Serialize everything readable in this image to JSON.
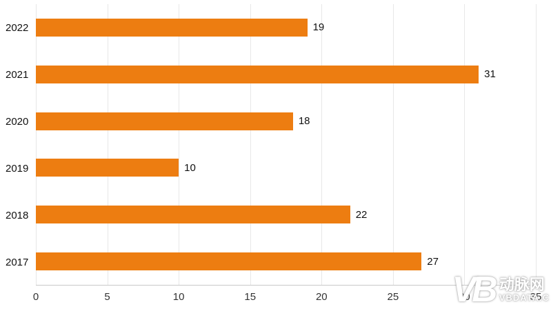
{
  "chart_data": {
    "type": "bar",
    "orientation": "horizontal",
    "title": "",
    "xlabel": "",
    "ylabel": "",
    "categories": [
      "2022",
      "2021",
      "2020",
      "2019",
      "2018",
      "2017"
    ],
    "values": [
      19,
      31,
      18,
      10,
      22,
      27
    ],
    "xlim": [
      0,
      35
    ],
    "xticks": [
      0,
      5,
      10,
      15,
      20,
      25,
      30,
      35
    ],
    "grid": true,
    "legend_position": "none",
    "bar_color": "#ed7d11"
  },
  "colors": {
    "bar": "#ed7d11",
    "gridline": "#e7e7e7",
    "axis_line": "#c9c9c9",
    "label_text": "#111111"
  },
  "watermark": {
    "logo": "VB",
    "name": "动脉网",
    "domain": "VBDATA.C"
  }
}
